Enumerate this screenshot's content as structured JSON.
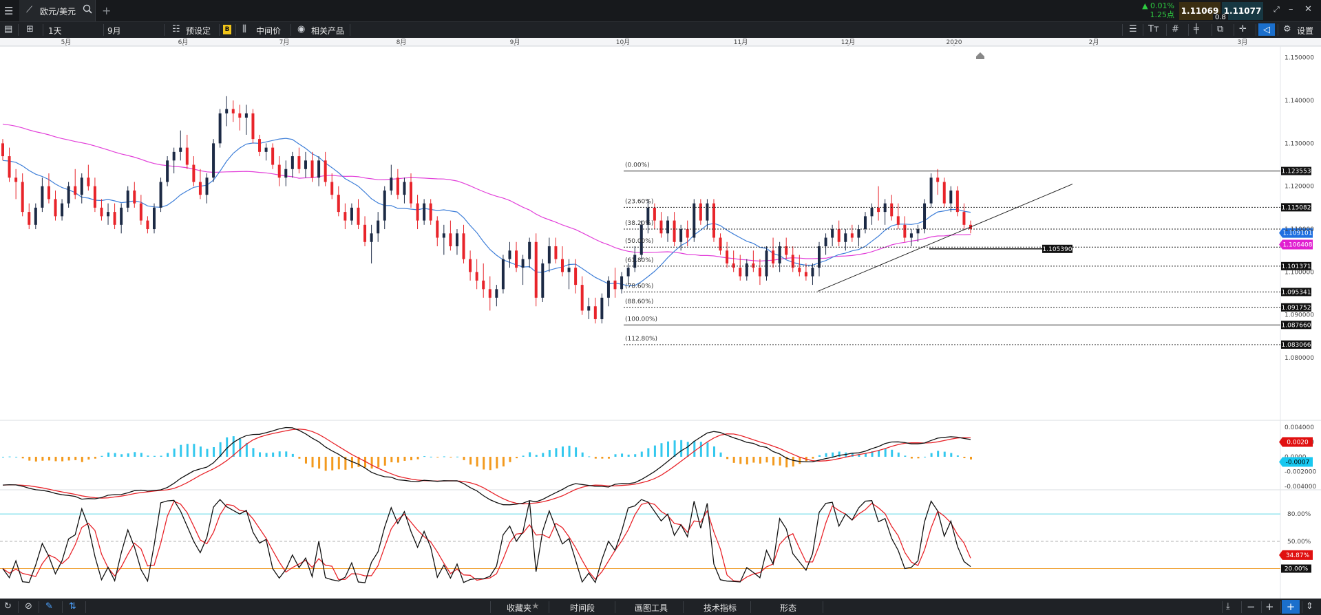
{
  "tabbar": {
    "menu_icon": "hamburger-icon",
    "symbol": "欧元/美元",
    "search_icon": "search-icon",
    "close_icon": "close-icon",
    "add_icon": "plus-icon",
    "change_pct": "▲ 0.01%",
    "change_pts": "1.25点",
    "bid": "1.11069",
    "ask": "1.11077",
    "spread": "0.8",
    "colors": {
      "up": "#2ecc40",
      "bid_bg": "#3b2e12",
      "ask_bg": "#173742"
    }
  },
  "toolbar": {
    "interval": "1天",
    "start": "9月",
    "presets": "预设定",
    "midprice": "中间价",
    "related": "相关产品",
    "settings": "设置"
  },
  "bottombar": {
    "favorites": "收藏夹",
    "timeframe": "时间段",
    "drawing_tools": "画图工具",
    "indicators": "技术指标",
    "patterns": "形态"
  },
  "chart_data": {
    "type": "candlestick",
    "x_axis": [
      "5月",
      "6月",
      "7月",
      "8月",
      "9月",
      "10月",
      "11月",
      "12月",
      "2020",
      "2月",
      "3月"
    ],
    "y_axis": [
      "1.150000",
      "1.140000",
      "1.130000",
      "1.120000",
      "1.110000",
      "1.100000",
      "1.090000",
      "1.080000"
    ],
    "ylim": [
      1.076,
      1.153
    ],
    "fibonacci": [
      {
        "label": "(0.00%)",
        "price": 1.123553,
        "value": "1.123553"
      },
      {
        "label": "(23.60%)",
        "price": 1.115082,
        "value": "1.115082"
      },
      {
        "label": "(38.20%)",
        "price": 1.11,
        "value": ""
      },
      {
        "label": "(50.00%)",
        "price": 1.1058,
        "value": ""
      },
      {
        "label": "(61.80%)",
        "price": 1.101371,
        "value": "1.101371"
      },
      {
        "label": "(78.60%)",
        "price": 1.095341,
        "value": "1.095341"
      },
      {
        "label": "(88.60%)",
        "price": 1.091752,
        "value": "1.091752"
      },
      {
        "label": "(100.00%)",
        "price": 1.08766,
        "value": "1.087660"
      },
      {
        "label": "(112.80%)",
        "price": 1.083066,
        "value": "1.083066"
      }
    ],
    "marker_blue": {
      "value": "1.109101",
      "color": "#1f6fe0"
    },
    "marker_magenta": {
      "value": "1.106408",
      "color": "#e020d0"
    },
    "horizontal_line_label": "1.105390",
    "candles": [
      [
        1.13,
        1.131,
        1.126,
        1.127
      ],
      [
        1.127,
        1.129,
        1.121,
        1.122
      ],
      [
        1.122,
        1.124,
        1.117,
        1.121
      ],
      [
        1.121,
        1.123,
        1.113,
        1.114
      ],
      [
        1.114,
        1.116,
        1.11,
        1.111
      ],
      [
        1.111,
        1.116,
        1.11,
        1.115
      ],
      [
        1.115,
        1.122,
        1.114,
        1.12
      ],
      [
        1.12,
        1.123,
        1.116,
        1.117
      ],
      [
        1.117,
        1.119,
        1.112,
        1.113
      ],
      [
        1.113,
        1.117,
        1.112,
        1.116
      ],
      [
        1.116,
        1.121,
        1.115,
        1.12
      ],
      [
        1.12,
        1.124,
        1.117,
        1.118
      ],
      [
        1.118,
        1.123,
        1.116,
        1.122
      ],
      [
        1.122,
        1.125,
        1.119,
        1.12
      ],
      [
        1.12,
        1.122,
        1.114,
        1.115
      ],
      [
        1.115,
        1.117,
        1.112,
        1.113
      ],
      [
        1.113,
        1.116,
        1.111,
        1.114
      ],
      [
        1.114,
        1.116,
        1.11,
        1.111
      ],
      [
        1.111,
        1.116,
        1.109,
        1.115
      ],
      [
        1.115,
        1.12,
        1.114,
        1.119
      ],
      [
        1.119,
        1.121,
        1.115,
        1.116
      ],
      [
        1.116,
        1.118,
        1.111,
        1.112
      ],
      [
        1.112,
        1.113,
        1.109,
        1.11
      ],
      [
        1.11,
        1.116,
        1.109,
        1.115
      ],
      [
        1.115,
        1.122,
        1.114,
        1.121
      ],
      [
        1.121,
        1.127,
        1.12,
        1.126
      ],
      [
        1.126,
        1.129,
        1.123,
        1.128
      ],
      [
        1.128,
        1.133,
        1.126,
        1.129
      ],
      [
        1.129,
        1.132,
        1.124,
        1.125
      ],
      [
        1.125,
        1.127,
        1.12,
        1.121
      ],
      [
        1.121,
        1.124,
        1.117,
        1.118
      ],
      [
        1.118,
        1.123,
        1.116,
        1.122
      ],
      [
        1.122,
        1.131,
        1.121,
        1.13
      ],
      [
        1.13,
        1.138,
        1.129,
        1.137
      ],
      [
        1.137,
        1.141,
        1.134,
        1.138
      ],
      [
        1.138,
        1.14,
        1.135,
        1.137
      ],
      [
        1.137,
        1.139,
        1.133,
        1.136
      ],
      [
        1.136,
        1.139,
        1.132,
        1.137
      ],
      [
        1.137,
        1.138,
        1.13,
        1.131
      ],
      [
        1.131,
        1.132,
        1.127,
        1.128
      ],
      [
        1.128,
        1.13,
        1.126,
        1.129
      ],
      [
        1.129,
        1.13,
        1.124,
        1.125
      ],
      [
        1.125,
        1.127,
        1.12,
        1.122
      ],
      [
        1.122,
        1.126,
        1.12,
        1.124
      ],
      [
        1.124,
        1.128,
        1.122,
        1.127
      ],
      [
        1.127,
        1.129,
        1.123,
        1.124
      ],
      [
        1.124,
        1.128,
        1.122,
        1.126
      ],
      [
        1.126,
        1.128,
        1.121,
        1.122
      ],
      [
        1.122,
        1.127,
        1.12,
        1.126
      ],
      [
        1.126,
        1.128,
        1.12,
        1.121
      ],
      [
        1.121,
        1.123,
        1.117,
        1.118
      ],
      [
        1.118,
        1.12,
        1.113,
        1.114
      ],
      [
        1.114,
        1.116,
        1.11,
        1.112
      ],
      [
        1.112,
        1.116,
        1.111,
        1.115
      ],
      [
        1.115,
        1.117,
        1.11,
        1.111
      ],
      [
        1.111,
        1.113,
        1.106,
        1.107
      ],
      [
        1.107,
        1.111,
        1.102,
        1.109
      ],
      [
        1.109,
        1.114,
        1.107,
        1.112
      ],
      [
        1.112,
        1.12,
        1.11,
        1.119
      ],
      [
        1.119,
        1.125,
        1.118,
        1.122
      ],
      [
        1.122,
        1.124,
        1.117,
        1.118
      ],
      [
        1.118,
        1.122,
        1.116,
        1.121
      ],
      [
        1.121,
        1.123,
        1.115,
        1.116
      ],
      [
        1.116,
        1.118,
        1.11,
        1.112
      ],
      [
        1.112,
        1.117,
        1.111,
        1.116
      ],
      [
        1.116,
        1.117,
        1.111,
        1.112
      ],
      [
        1.112,
        1.113,
        1.106,
        1.108
      ],
      [
        1.108,
        1.111,
        1.104,
        1.109
      ],
      [
        1.109,
        1.112,
        1.105,
        1.106
      ],
      [
        1.106,
        1.11,
        1.104,
        1.109
      ],
      [
        1.109,
        1.111,
        1.102,
        1.103
      ],
      [
        1.103,
        1.105,
        1.098,
        1.1
      ],
      [
        1.1,
        1.103,
        1.096,
        1.098
      ],
      [
        1.098,
        1.102,
        1.094,
        1.096
      ],
      [
        1.096,
        1.099,
        1.091,
        1.094
      ],
      [
        1.094,
        1.097,
        1.092,
        1.096
      ],
      [
        1.096,
        1.104,
        1.095,
        1.103
      ],
      [
        1.103,
        1.107,
        1.101,
        1.105
      ],
      [
        1.105,
        1.107,
        1.1,
        1.101
      ],
      [
        1.101,
        1.104,
        1.097,
        1.103
      ],
      [
        1.103,
        1.108,
        1.101,
        1.107
      ],
      [
        1.107,
        1.109,
        1.092,
        1.094
      ],
      [
        1.094,
        1.103,
        1.093,
        1.102
      ],
      [
        1.102,
        1.108,
        1.1,
        1.106
      ],
      [
        1.106,
        1.108,
        1.102,
        1.103
      ],
      [
        1.103,
        1.106,
        1.099,
        1.1
      ],
      [
        1.1,
        1.103,
        1.096,
        1.101
      ],
      [
        1.101,
        1.103,
        1.095,
        1.097
      ],
      [
        1.097,
        1.099,
        1.09,
        1.091
      ],
      [
        1.091,
        1.094,
        1.089,
        1.092
      ],
      [
        1.092,
        1.094,
        1.088,
        1.089
      ],
      [
        1.089,
        1.095,
        1.088,
        1.094
      ],
      [
        1.094,
        1.099,
        1.092,
        1.098
      ],
      [
        1.098,
        1.101,
        1.094,
        1.096
      ],
      [
        1.096,
        1.1,
        1.095,
        1.099
      ],
      [
        1.099,
        1.102,
        1.097,
        1.101
      ],
      [
        1.101,
        1.106,
        1.1,
        1.104
      ],
      [
        1.104,
        1.112,
        1.103,
        1.111
      ],
      [
        1.111,
        1.117,
        1.109,
        1.115
      ],
      [
        1.115,
        1.116,
        1.11,
        1.112
      ],
      [
        1.112,
        1.114,
        1.108,
        1.109
      ],
      [
        1.109,
        1.113,
        1.107,
        1.112
      ],
      [
        1.112,
        1.114,
        1.106,
        1.107
      ],
      [
        1.107,
        1.111,
        1.105,
        1.11
      ],
      [
        1.11,
        1.112,
        1.106,
        1.108
      ],
      [
        1.108,
        1.117,
        1.107,
        1.116
      ],
      [
        1.116,
        1.117,
        1.111,
        1.112
      ],
      [
        1.112,
        1.117,
        1.11,
        1.116
      ],
      [
        1.116,
        1.117,
        1.107,
        1.108
      ],
      [
        1.108,
        1.109,
        1.104,
        1.105
      ],
      [
        1.105,
        1.107,
        1.101,
        1.102
      ],
      [
        1.102,
        1.105,
        1.1,
        1.101
      ],
      [
        1.101,
        1.104,
        1.098,
        1.099
      ],
      [
        1.099,
        1.103,
        1.098,
        1.102
      ],
      [
        1.102,
        1.105,
        1.1,
        1.101
      ],
      [
        1.101,
        1.103,
        1.097,
        1.099
      ],
      [
        1.099,
        1.106,
        1.098,
        1.105
      ],
      [
        1.105,
        1.108,
        1.101,
        1.102
      ],
      [
        1.102,
        1.107,
        1.1,
        1.106
      ],
      [
        1.106,
        1.108,
        1.103,
        1.104
      ],
      [
        1.104,
        1.106,
        1.1,
        1.101
      ],
      [
        1.101,
        1.104,
        1.099,
        1.1
      ],
      [
        1.1,
        1.102,
        1.098,
        1.099
      ],
      [
        1.099,
        1.102,
        1.097,
        1.101
      ],
      [
        1.101,
        1.107,
        1.099,
        1.106
      ],
      [
        1.106,
        1.109,
        1.104,
        1.108
      ],
      [
        1.108,
        1.111,
        1.106,
        1.11
      ],
      [
        1.11,
        1.112,
        1.106,
        1.107
      ],
      [
        1.107,
        1.11,
        1.105,
        1.109
      ],
      [
        1.109,
        1.111,
        1.107,
        1.108
      ],
      [
        1.108,
        1.111,
        1.106,
        1.11
      ],
      [
        1.11,
        1.114,
        1.109,
        1.113
      ],
      [
        1.113,
        1.116,
        1.111,
        1.115
      ],
      [
        1.115,
        1.12,
        1.112,
        1.114
      ],
      [
        1.114,
        1.117,
        1.111,
        1.116
      ],
      [
        1.116,
        1.118,
        1.112,
        1.113
      ],
      [
        1.113,
        1.116,
        1.11,
        1.111
      ],
      [
        1.111,
        1.113,
        1.107,
        1.108
      ],
      [
        1.108,
        1.11,
        1.106,
        1.109
      ],
      [
        1.109,
        1.111,
        1.107,
        1.11
      ],
      [
        1.11,
        1.117,
        1.109,
        1.116
      ],
      [
        1.116,
        1.123,
        1.115,
        1.122
      ],
      [
        1.122,
        1.124,
        1.118,
        1.121
      ],
      [
        1.121,
        1.122,
        1.115,
        1.116
      ],
      [
        1.116,
        1.12,
        1.114,
        1.119
      ],
      [
        1.119,
        1.12,
        1.113,
        1.114
      ],
      [
        1.114,
        1.116,
        1.11,
        1.111
      ],
      [
        1.111,
        1.112,
        1.109,
        1.11
      ]
    ],
    "macd": {
      "labels": [
        "0.004000",
        "0.002000",
        "0.0000",
        "-0.002000",
        "-0.004000"
      ],
      "value": "0.0020",
      "signal": "-0.0007"
    },
    "stoch": {
      "labels": [
        "80.00%",
        "50.00%",
        "20.00%"
      ],
      "value": "34.87%",
      "lower": "20.00%"
    }
  }
}
